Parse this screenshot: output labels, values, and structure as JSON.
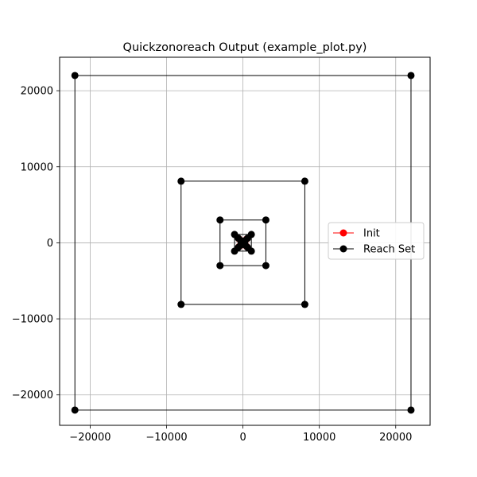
{
  "chart_data": {
    "type": "line",
    "title": "Quickzonoreach Output (example_plot.py)",
    "xlabel": "",
    "ylabel": "",
    "xlim": [
      -24000,
      24500
    ],
    "ylim": [
      -24000,
      24400
    ],
    "xticks": [
      -20000,
      -10000,
      0,
      10000,
      20000
    ],
    "yticks": [
      -20000,
      -10000,
      0,
      10000,
      20000
    ],
    "xtick_labels": [
      "−20000",
      "−10000",
      "0",
      "10000",
      "20000"
    ],
    "ytick_labels": [
      "−20000",
      "−10000",
      "0",
      "10000",
      "20000"
    ],
    "grid": true,
    "legend_position": "center-right",
    "series": [
      {
        "name": "Init",
        "color": "#ff0000",
        "marker": "circle",
        "polygons": [
          [
            [
              -500,
              -500
            ],
            [
              500,
              -500
            ],
            [
              500,
              500
            ],
            [
              -500,
              500
            ]
          ]
        ]
      },
      {
        "name": "Reach Set",
        "color": "#000000",
        "marker": "circle",
        "polygons": [
          [
            [
              -22000,
              -22000
            ],
            [
              22000,
              -22000
            ],
            [
              22000,
              22000
            ],
            [
              -22000,
              22000
            ]
          ],
          [
            [
              -8100,
              -8100
            ],
            [
              8100,
              -8100
            ],
            [
              8100,
              8100
            ],
            [
              -8100,
              8100
            ]
          ],
          [
            [
              -3000,
              -3000
            ],
            [
              3000,
              -3000
            ],
            [
              3000,
              3000
            ],
            [
              -3000,
              3000
            ]
          ],
          [
            [
              -1100,
              -1100
            ],
            [
              1100,
              -1100
            ],
            [
              1100,
              1100
            ],
            [
              -1100,
              1100
            ]
          ],
          [
            [
              -600,
              -600
            ],
            [
              600,
              -600
            ],
            [
              600,
              600
            ],
            [
              -600,
              600
            ]
          ],
          [
            [
              -300,
              -300
            ],
            [
              300,
              -300
            ],
            [
              300,
              300
            ],
            [
              -300,
              300
            ]
          ]
        ]
      }
    ]
  }
}
